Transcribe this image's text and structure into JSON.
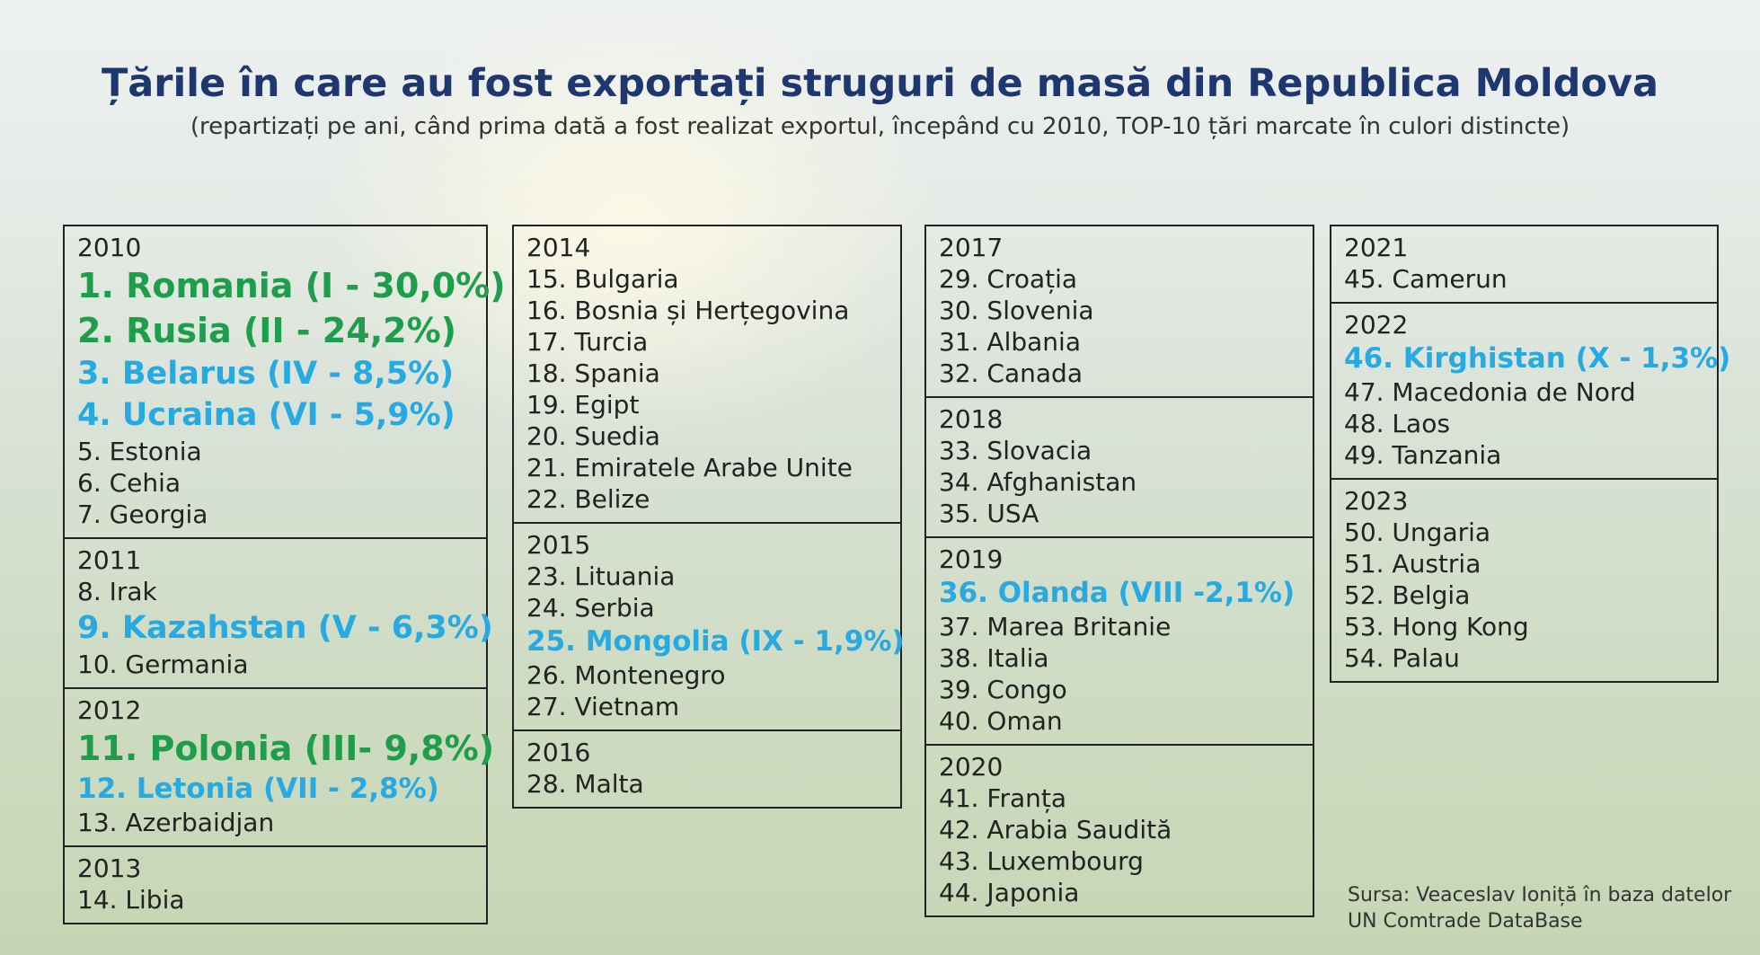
{
  "header": {
    "title": "Țările în care au fost exportați struguri de masă din Republica Moldova",
    "subtitle": "(repartizați pe ani, când prima dată a fost realizat exportul, începând cu 2010, TOP-10 țări marcate în culori distincte)"
  },
  "columns": [
    {
      "boxes": [
        {
          "year": "2010",
          "items": [
            {
              "text": "1. Romania (I - 30,0%)",
              "color": "#1e9e4a",
              "size": "large"
            },
            {
              "text": "2. Rusia (II - 24,2%)",
              "color": "#1e9e4a",
              "size": "large"
            },
            {
              "text": "3. Belarus (IV - 8,5%)",
              "color": "#27a9e1",
              "size": "medium"
            },
            {
              "text": "4. Ucraina (VI - 5,9%)",
              "color": "#27a9e1",
              "size": "medium"
            },
            {
              "text": "5. Estonia"
            },
            {
              "text": "6. Cehia"
            },
            {
              "text": "7. Georgia"
            }
          ]
        },
        {
          "year": "2011",
          "items": [
            {
              "text": "8. Irak"
            },
            {
              "text": "9. Kazahstan (V - 6,3%)",
              "color": "#27a9e1",
              "size": "medium"
            },
            {
              "text": "10. Germania"
            }
          ]
        },
        {
          "year": "2012",
          "items": [
            {
              "text": "11. Polonia (III- 9,8%)",
              "color": "#1e9e4a",
              "size": "large"
            },
            {
              "text": "12. Letonia (VII - 2,8%)",
              "color": "#27a9e1",
              "size": "small"
            },
            {
              "text": "13. Azerbaidjan"
            }
          ]
        },
        {
          "year": "2013",
          "items": [
            {
              "text": "14. Libia"
            }
          ]
        }
      ]
    },
    {
      "boxes": [
        {
          "year": "2014",
          "items": [
            {
              "text": "15. Bulgaria"
            },
            {
              "text": "16. Bosnia și Herțegovina"
            },
            {
              "text": "17. Turcia"
            },
            {
              "text": "18. Spania"
            },
            {
              "text": "19. Egipt"
            },
            {
              "text": "20. Suedia"
            },
            {
              "text": "21. Emiratele Arabe Unite"
            },
            {
              "text": "22. Belize"
            }
          ]
        },
        {
          "year": "2015",
          "items": [
            {
              "text": "23. Lituania"
            },
            {
              "text": "24. Serbia"
            },
            {
              "text": "25. Mongolia (IX - 1,9%)",
              "color": "#27a9e1",
              "size": "small"
            },
            {
              "text": "26. Montenegro"
            },
            {
              "text": "27. Vietnam"
            }
          ]
        },
        {
          "year": "2016",
          "items": [
            {
              "text": "28. Malta"
            }
          ]
        }
      ]
    },
    {
      "boxes": [
        {
          "year": "2017",
          "items": [
            {
              "text": "29. Croația"
            },
            {
              "text": "30. Slovenia"
            },
            {
              "text": "31. Albania"
            },
            {
              "text": "32. Canada"
            }
          ]
        },
        {
          "year": "2018",
          "items": [
            {
              "text": "33. Slovacia"
            },
            {
              "text": "34. Afghanistan"
            },
            {
              "text": "35. USA"
            }
          ]
        },
        {
          "year": "2019",
          "items": [
            {
              "text": "36. Olanda (VIII -2,1%)",
              "color": "#27a9e1",
              "size": "small"
            },
            {
              "text": "37. Marea Britanie"
            },
            {
              "text": "38. Italia"
            },
            {
              "text": "39. Congo"
            },
            {
              "text": "40. Oman"
            }
          ]
        },
        {
          "year": "2020",
          "items": [
            {
              "text": "41. Franța"
            },
            {
              "text": "42. Arabia Saudită"
            },
            {
              "text": "43. Luxembourg"
            },
            {
              "text": "44. Japonia"
            }
          ]
        }
      ]
    },
    {
      "boxes": [
        {
          "year": "2021",
          "items": [
            {
              "text": "45. Camerun"
            }
          ]
        },
        {
          "year": "2022",
          "items": [
            {
              "text": "46. Kirghistan (X - 1,3%)",
              "color": "#27a9e1",
              "size": "small"
            },
            {
              "text": "47. Macedonia de Nord"
            },
            {
              "text": "48. Laos"
            },
            {
              "text": "49. Tanzania"
            }
          ]
        },
        {
          "year": "2023",
          "items": [
            {
              "text": "50. Ungaria"
            },
            {
              "text": "51. Austria"
            },
            {
              "text": "52. Belgia"
            },
            {
              "text": "53. Hong Kong"
            },
            {
              "text": "54. Palau"
            }
          ]
        }
      ]
    }
  ],
  "source": [
    "Sursa: Veaceslav Ioniță în baza datelor",
    "UN Comtrade DataBase"
  ]
}
